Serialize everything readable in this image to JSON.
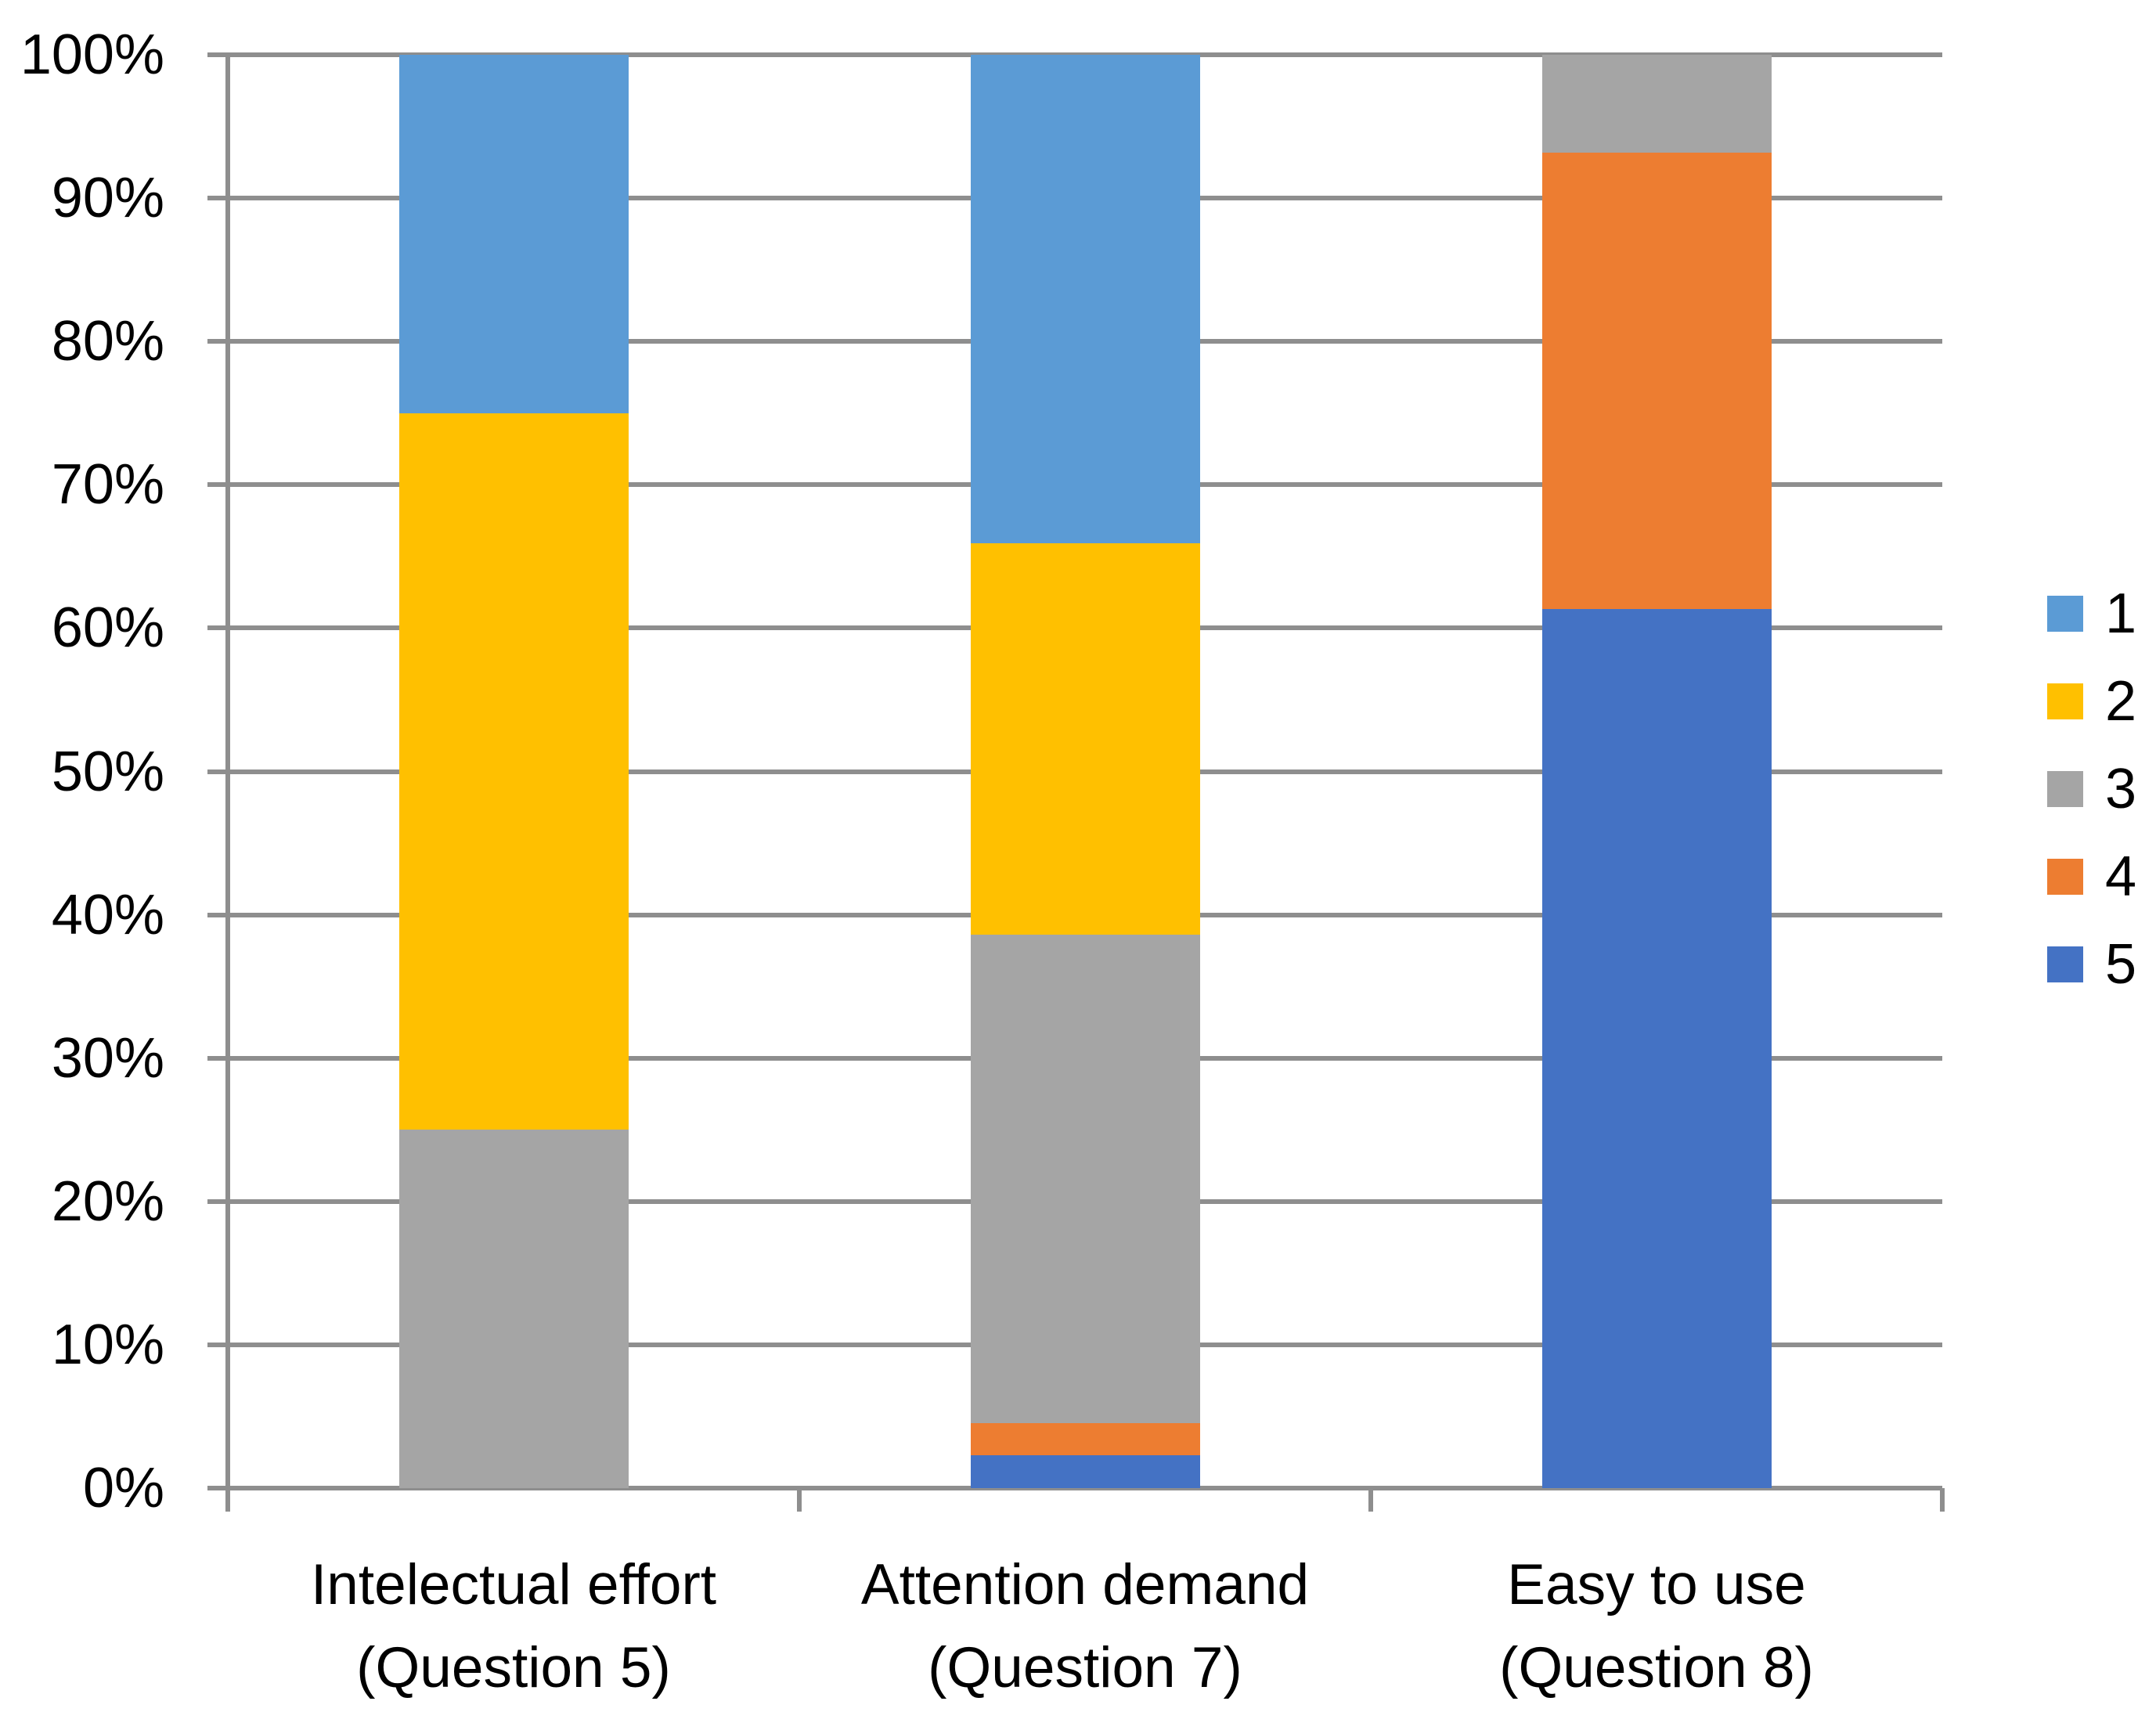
{
  "chart_data": {
    "type": "bar",
    "stacked": true,
    "percent_stacked": true,
    "title": "",
    "xlabel": "",
    "ylabel": "",
    "categories": [
      {
        "line1": "Intelectual effort",
        "line2": "(Question 5)"
      },
      {
        "line1": "Attention demand",
        "line2": "(Question 7)"
      },
      {
        "line1": "Easy to use",
        "line2": "(Question 8)"
      }
    ],
    "series": [
      {
        "name": "1",
        "color": "#5B9BD5",
        "values": [
          25.0,
          34.09,
          0.0
        ]
      },
      {
        "name": "2",
        "color": "#FFC000",
        "values": [
          50.0,
          27.27,
          0.0
        ]
      },
      {
        "name": "3",
        "color": "#A5A5A5",
        "values": [
          25.0,
          34.09,
          6.82
        ]
      },
      {
        "name": "4",
        "color": "#ED7D31",
        "values": [
          0.0,
          2.27,
          31.82
        ]
      },
      {
        "name": "5",
        "color": "#4472C4",
        "values": [
          0.0,
          2.27,
          61.36
        ]
      }
    ],
    "stack_order_bottom_to_top": [
      "5",
      "4",
      "3",
      "2",
      "1"
    ],
    "y_axis": {
      "min": 0,
      "max": 100,
      "tick_step": 10,
      "tick_labels": [
        "0%",
        "10%",
        "20%",
        "30%",
        "40%",
        "50%",
        "60%",
        "70%",
        "80%",
        "90%",
        "100%"
      ]
    },
    "legend": {
      "position": "right",
      "entries": [
        "1",
        "2",
        "3",
        "4",
        "5"
      ]
    },
    "grid": true,
    "colors": {
      "gridline": "#8E8E8E",
      "axis": "#8E8E8E",
      "text": "#000000",
      "background": "#FFFFFF"
    }
  }
}
